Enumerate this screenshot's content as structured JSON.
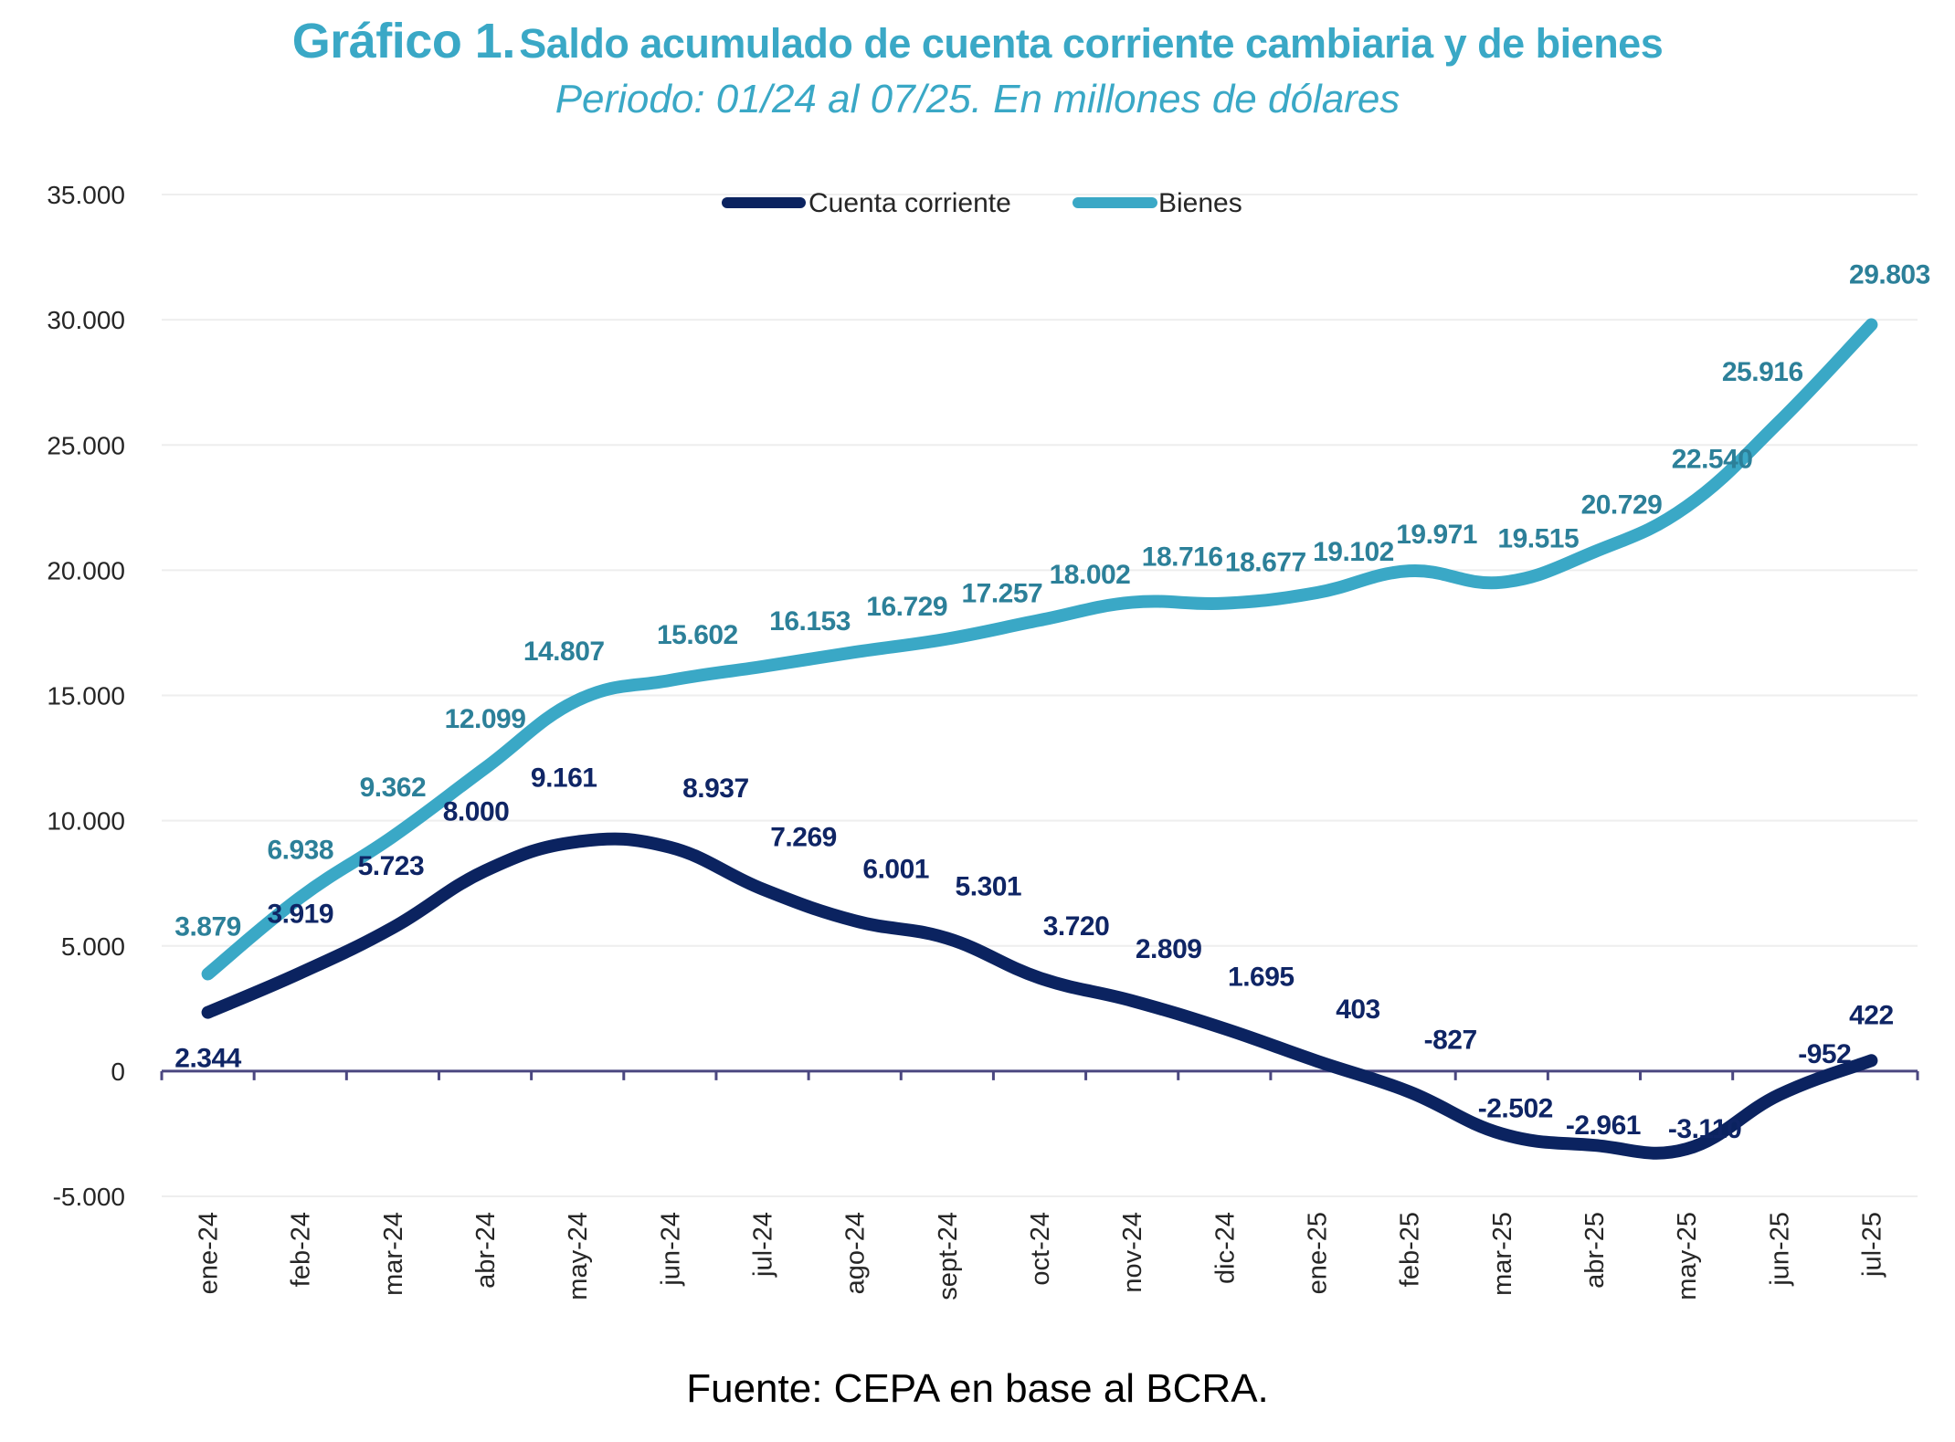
{
  "title": {
    "number": "Gráfico 1.",
    "text": "Saldo acumulado de cuenta corriente cambiaria y de bienes",
    "subtitle": "Periodo: 01/24 al 07/25. En millones de dólares"
  },
  "footer": "Fuente: CEPA en base al BCRA.",
  "colors": {
    "title": "#3aa8c6",
    "cuenta_corriente_line": "#0b2360",
    "cuenta_corriente_label": "#0f2565",
    "bienes_line": "#3aa8c6",
    "bienes_label": "#2c8099",
    "zero_axis": "#4b4780",
    "grid": "#eeeeee"
  },
  "chart_data": {
    "type": "line",
    "title": "Saldo acumulado de cuenta corriente cambiaria y de bienes",
    "subtitle": "Periodo: 01/24 al 07/25. En millones de dólares",
    "xlabel": "",
    "ylabel": "",
    "ylim": [
      -5000,
      35000
    ],
    "yticks": [
      -5000,
      0,
      5000,
      10000,
      15000,
      20000,
      25000,
      30000,
      35000
    ],
    "ytick_labels": [
      "-5.000",
      "0",
      "5.000",
      "10.000",
      "15.000",
      "20.000",
      "25.000",
      "30.000",
      "35.000"
    ],
    "grid": true,
    "legend_position": "top-center",
    "smoothed": true,
    "categories": [
      "ene-24",
      "feb-24",
      "mar-24",
      "abr-24",
      "may-24",
      "jun-24",
      "jul-24",
      "ago-24",
      "sept-24",
      "oct-24",
      "nov-24",
      "dic-24",
      "ene-25",
      "feb-25",
      "mar-25",
      "abr-25",
      "may-25",
      "jun-25",
      "jul-25"
    ],
    "series": [
      {
        "name": "Cuenta corriente",
        "values": [
          2344,
          3919,
          5723,
          8000,
          9161,
          8937,
          7269,
          6001,
          5301,
          3720,
          2809,
          1695,
          403,
          -827,
          -2502,
          -2961,
          -3110,
          -952,
          422
        ],
        "labels": [
          "2.344",
          "3.919",
          "5.723",
          "8.000",
          "9.161",
          "8.937",
          "7.269",
          "6.001",
          "5.301",
          "3.720",
          "2.809",
          "1.695",
          "403",
          "-827",
          "-2.502",
          "-2.961",
          "-3.110",
          "-952",
          "422"
        ]
      },
      {
        "name": "Bienes",
        "values": [
          3879,
          6938,
          9362,
          12099,
          14807,
          15602,
          16153,
          16729,
          17257,
          18002,
          18716,
          18677,
          19102,
          19971,
          19515,
          20729,
          22540,
          25916,
          29803
        ],
        "labels": [
          "3.879",
          "6.938",
          "9.362",
          "12.099",
          "14.807",
          "15.602",
          "16.153",
          "16.729",
          "17.257",
          "18.002",
          "18.716",
          "18.677",
          "19.102",
          "19.971",
          "19.515",
          "20.729",
          "22.540",
          "25.916",
          "29.803"
        ]
      }
    ]
  }
}
